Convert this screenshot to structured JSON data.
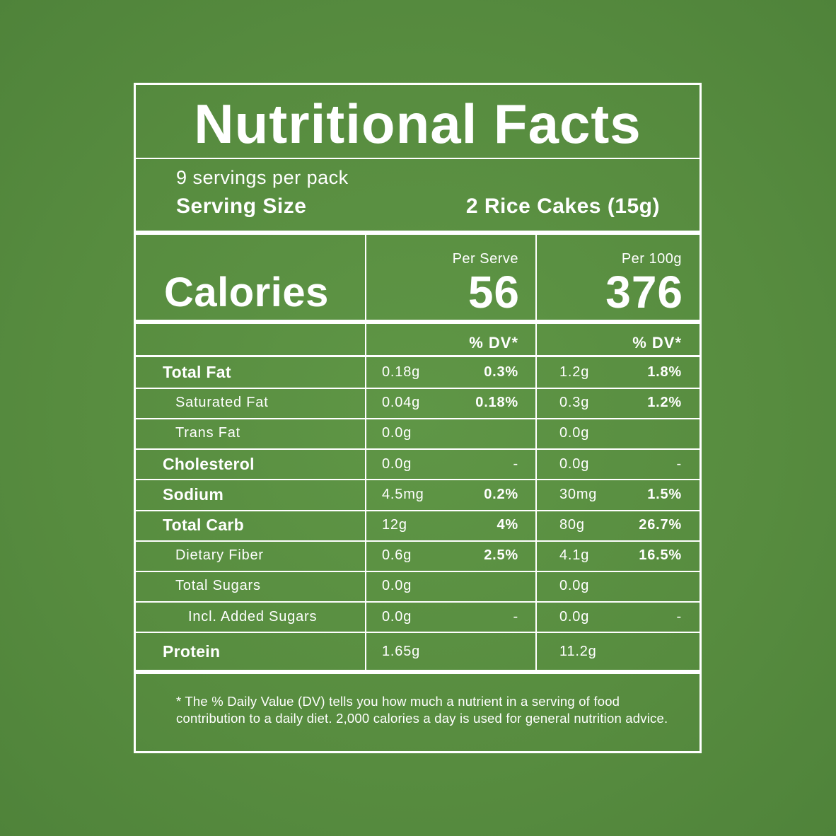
{
  "title": "Nutritional Facts",
  "servings": "9 servings per pack",
  "serving_size": {
    "label": "Serving Size",
    "value": "2 Rice Cakes (15g)"
  },
  "calories": {
    "label": "Calories",
    "per_serve_label": "Per Serve",
    "per_serve_value": "56",
    "per_100g_label": "Per 100g",
    "per_100g_value": "376"
  },
  "dv_header": {
    "serve": "% DV*",
    "per100": "% DV*"
  },
  "nutrients": [
    {
      "name": "Total Fat",
      "serve": "0.18g",
      "serve_dv": "0.3%",
      "per100": "1.2g",
      "per100_dv": "1.8%"
    },
    {
      "name": "Saturated Fat",
      "serve": "0.04g",
      "serve_dv": "0.18%",
      "per100": "0.3g",
      "per100_dv": "1.2%"
    },
    {
      "name": "Trans Fat",
      "serve": "0.0g",
      "serve_dv": "",
      "per100": "0.0g",
      "per100_dv": ""
    },
    {
      "name": "Cholesterol",
      "serve": "0.0g",
      "serve_dv": "-",
      "per100": "0.0g",
      "per100_dv": "-"
    },
    {
      "name": "Sodium",
      "serve": "4.5mg",
      "serve_dv": "0.2%",
      "per100": "30mg",
      "per100_dv": "1.5%"
    },
    {
      "name": "Total Carb",
      "serve": "12g",
      "serve_dv": "4%",
      "per100": "80g",
      "per100_dv": "26.7%"
    },
    {
      "name": "Dietary Fiber",
      "serve": "0.6g",
      "serve_dv": "2.5%",
      "per100": "4.1g",
      "per100_dv": "16.5%"
    },
    {
      "name": "Total Sugars",
      "serve": "0.0g",
      "serve_dv": "",
      "per100": "0.0g",
      "per100_dv": ""
    },
    {
      "name": "Incl. Added Sugars",
      "serve": "0.0g",
      "serve_dv": "-",
      "per100": "0.0g",
      "per100_dv": "-"
    },
    {
      "name": "Protein",
      "serve": "1.65g",
      "serve_dv": "",
      "per100": "11.2g",
      "per100_dv": ""
    }
  ],
  "footnote": "* The % Daily Value (DV) tells you how much a nutrient in a serving of food contribution to a daily diet. 2,000 calories a day is used for general nutrition advice.",
  "colors": {
    "background": "#578c3f",
    "lines": "#ffffff",
    "text": "#ffffff"
  }
}
